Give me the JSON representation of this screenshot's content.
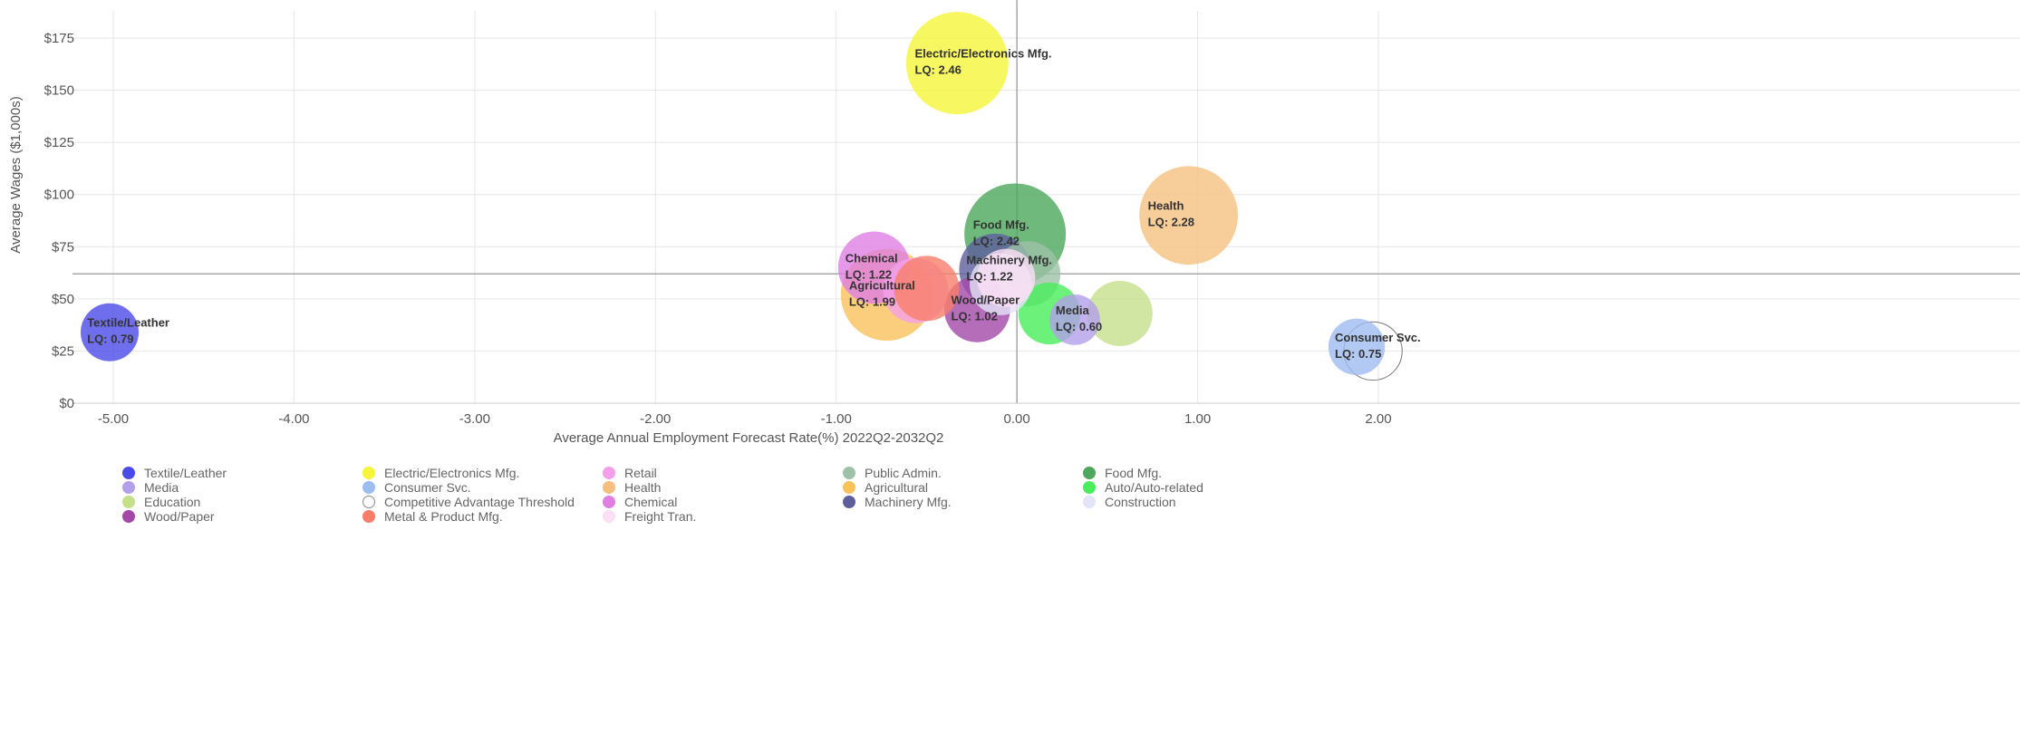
{
  "chart_data": {
    "type": "scatter",
    "subtype": "bubble",
    "xlabel": "Average Annual Employment Forecast Rate(%) 2022Q2-2032Q2",
    "ylabel": "Average Wages ($1,000s)",
    "xlim": [
      -5.25,
      2.2
    ],
    "ylim": [
      0,
      180
    ],
    "x_ticks": [
      -5,
      -4,
      -3,
      -2,
      -1,
      0,
      1,
      2
    ],
    "x_tick_labels": [
      "-5.00",
      "-4.00",
      "-3.00",
      "-2.00",
      "-1.00",
      "0.00",
      "1.00",
      "2.00"
    ],
    "y_ticks": [
      0,
      25,
      50,
      75,
      100,
      125,
      150,
      175
    ],
    "y_tick_labels": [
      "$0",
      "$25",
      "$50",
      "$75",
      "$100",
      "$125",
      "$150",
      "$175"
    ],
    "grid": true,
    "legend_position": "bottom",
    "threshold_lines": {
      "x": 0,
      "y": 62
    },
    "series": [
      {
        "name": "Textile/Leather",
        "color": "#4b4be8",
        "x": -5.02,
        "y": 34,
        "size": 0.79,
        "label": "Textile/Leather",
        "lq": "LQ: 0.79"
      },
      {
        "name": "Electric/Electronics Mfg.",
        "color": "#f5f53a",
        "x": -0.33,
        "y": 163,
        "size": 2.46,
        "label": "Electric/Electronics Mfg.",
        "lq": "LQ: 2.46"
      },
      {
        "name": "Retail",
        "color": "#f4a0e8",
        "x": -0.56,
        "y": 54,
        "size": 1.0
      },
      {
        "name": "Public Admin.",
        "color": "#9ec2a8",
        "x": 0.06,
        "y": 62,
        "size": 1.0
      },
      {
        "name": "Food Mfg.",
        "color": "#4ca85c",
        "x": -0.01,
        "y": 81,
        "size": 2.42,
        "label": "Food Mfg.",
        "lq": "LQ: 2.42"
      },
      {
        "name": "Media",
        "color": "#b3a0ea",
        "x": 0.32,
        "y": 40,
        "size": 0.6,
        "label": "Media",
        "lq": "LQ: 0.60"
      },
      {
        "name": "Consumer Svc.",
        "color": "#9dbcf0",
        "x": 1.88,
        "y": 27,
        "size": 0.75,
        "label": "Consumer Svc.",
        "lq": "LQ: 0.75"
      },
      {
        "name": "Health",
        "color": "#f5c07f",
        "x": 0.95,
        "y": 90,
        "size": 2.28,
        "label": "Health",
        "lq": "LQ: 2.28"
      },
      {
        "name": "Agricultural",
        "color": "#f9c25b",
        "x": -0.72,
        "y": 52,
        "size": 1.99,
        "label": "Agricultural",
        "lq": "LQ: 1.99"
      },
      {
        "name": "Auto/Auto-related",
        "color": "#47ed5a",
        "x": 0.18,
        "y": 43,
        "size": 0.9
      },
      {
        "name": "Education",
        "color": "#c4e08b",
        "x": 0.57,
        "y": 43,
        "size": 1.0
      },
      {
        "name": "Competitive Advantage Threshold",
        "color": "#ffffff",
        "x": 1.97,
        "y": 25,
        "size": 0.8
      },
      {
        "name": "Chemical",
        "color": "#e07ee4",
        "x": -0.79,
        "y": 65,
        "size": 1.22,
        "label": "Chemical",
        "lq": "LQ: 1.22"
      },
      {
        "name": "Machinery Mfg.",
        "color": "#5e5e9c",
        "x": -0.12,
        "y": 64,
        "size": 1.22,
        "label": "Machinery Mfg.",
        "lq": "LQ: 1.22"
      },
      {
        "name": "Construction",
        "color": "#e4e4f8",
        "x": -0.09,
        "y": 57,
        "size": 0.9
      },
      {
        "name": "Wood/Paper",
        "color": "#a448a8",
        "x": -0.22,
        "y": 45,
        "size": 1.02,
        "label": "Wood/Paper",
        "lq": "LQ: 1.02"
      },
      {
        "name": "Metal & Product Mfg.",
        "color": "#f87e6a",
        "x": -0.5,
        "y": 55,
        "size": 1.0
      },
      {
        "name": "Freight Tran.",
        "color": "#fbe0f5",
        "x": -0.06,
        "y": 60,
        "size": 0.8
      }
    ]
  }
}
